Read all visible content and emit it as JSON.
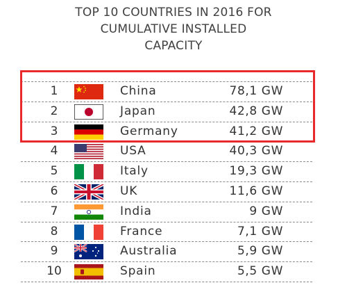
{
  "title_lines": [
    "TOP 10 COUNTRIES IN 2016 FOR",
    "CUMULATIVE INSTALLED",
    "CAPACITY"
  ],
  "colors": {
    "highlight": "#e8282a"
  },
  "chart_data": {
    "type": "table",
    "title": "TOP 10 COUNTRIES IN 2016 FOR CUMULATIVE INSTALLED CAPACITY",
    "columns": [
      "rank",
      "flag",
      "country",
      "capacity"
    ],
    "highlighted_ranks": [
      1,
      2,
      3
    ],
    "rows": [
      {
        "rank": "1",
        "flag": "china-flag-icon",
        "country": "China",
        "capacity": "78,1 GW",
        "value": 78.1
      },
      {
        "rank": "2",
        "flag": "japan-flag-icon",
        "country": "Japan",
        "capacity": "42,8 GW",
        "value": 42.8
      },
      {
        "rank": "3",
        "flag": "germany-flag-icon",
        "country": "Germany",
        "capacity": "41,2 GW",
        "value": 41.2
      },
      {
        "rank": "4",
        "flag": "usa-flag-icon",
        "country": "USA",
        "capacity": "40,3 GW",
        "value": 40.3
      },
      {
        "rank": "5",
        "flag": "italy-flag-icon",
        "country": "Italy",
        "capacity": "19,3 GW",
        "value": 19.3
      },
      {
        "rank": "6",
        "flag": "uk-flag-icon",
        "country": "UK",
        "capacity": "11,6 GW",
        "value": 11.6
      },
      {
        "rank": "7",
        "flag": "india-flag-icon",
        "country": "India",
        "capacity": "9 GW",
        "value": 9
      },
      {
        "rank": "8",
        "flag": "france-flag-icon",
        "country": "France",
        "capacity": "7,1 GW",
        "value": 7.1
      },
      {
        "rank": "9",
        "flag": "australia-flag-icon",
        "country": "Australia",
        "capacity": "5,9 GW",
        "value": 5.9
      },
      {
        "rank": "10",
        "flag": "spain-flag-icon",
        "country": "Spain",
        "capacity": "5,5 GW",
        "value": 5.5
      }
    ]
  }
}
